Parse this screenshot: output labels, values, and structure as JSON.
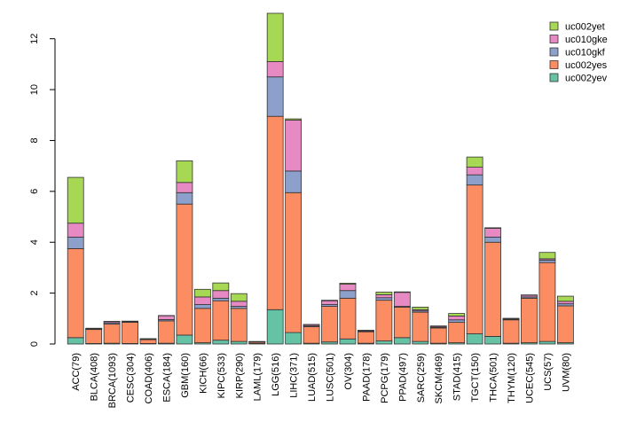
{
  "chart_data": {
    "type": "bar",
    "stacked": true,
    "ylim": [
      0,
      13
    ],
    "yticks": [
      0,
      2,
      4,
      6,
      8,
      10,
      12
    ],
    "categories": [
      "ACC(79)",
      "BLCA(408)",
      "BRCA(1093)",
      "CESC(304)",
      "COAD(406)",
      "ESCA(184)",
      "GBM(160)",
      "KICH(66)",
      "KIPC(533)",
      "KIRP(290)",
      "LAML(179)",
      "LGG(516)",
      "LIHC(371)",
      "LUAD(515)",
      "LUSC(501)",
      "OV(304)",
      "PAAD(178)",
      "PCPG(179)",
      "PPAD(497)",
      "SARC(259)",
      "SKCM(469)",
      "STAD(415)",
      "TGCT(150)",
      "THCA(501)",
      "THYM(120)",
      "UCEC(545)",
      "UCS(57)",
      "UVM(80)"
    ],
    "series": [
      {
        "name": "uc002yev",
        "color": "#66c2a5",
        "values": [
          0.25,
          0.02,
          0.03,
          0.02,
          0.02,
          0.03,
          0.35,
          0.05,
          0.15,
          0.1,
          0.02,
          1.35,
          0.45,
          0.03,
          0.08,
          0.2,
          0.03,
          0.12,
          0.25,
          0.1,
          0.03,
          0.05,
          0.4,
          0.3,
          0.03,
          0.05,
          0.1,
          0.05
        ]
      },
      {
        "name": "uc002yes",
        "color": "#fc8d62",
        "values": [
          3.5,
          0.55,
          0.75,
          0.83,
          0.15,
          0.88,
          5.15,
          1.35,
          1.55,
          1.3,
          0.05,
          7.6,
          5.5,
          0.65,
          1.4,
          1.6,
          0.45,
          1.6,
          1.2,
          1.15,
          0.6,
          0.8,
          5.85,
          3.7,
          0.92,
          1.75,
          3.1,
          1.45
        ]
      },
      {
        "name": "uc010gkf",
        "color": "#8da0cb",
        "values": [
          0.45,
          0.02,
          0.05,
          0.02,
          0.02,
          0.05,
          0.45,
          0.15,
          0.1,
          0.08,
          0.01,
          1.55,
          0.85,
          0.03,
          0.07,
          0.3,
          0.02,
          0.1,
          0.03,
          0.05,
          0.03,
          0.1,
          0.4,
          0.2,
          0.02,
          0.05,
          0.1,
          0.08
        ]
      },
      {
        "name": "uc010gke",
        "color": "#e78ac3",
        "values": [
          0.55,
          0.02,
          0.05,
          0.02,
          0.01,
          0.15,
          0.4,
          0.3,
          0.3,
          0.2,
          0.01,
          0.6,
          2.0,
          0.05,
          0.15,
          0.25,
          0.03,
          0.12,
          0.55,
          0.05,
          0.04,
          0.15,
          0.3,
          0.35,
          0.03,
          0.07,
          0.05,
          0.1
        ]
      },
      {
        "name": "uc002yet",
        "color": "#a6d854",
        "values": [
          1.8,
          0.01,
          0.01,
          0.01,
          0.01,
          0.01,
          0.85,
          0.3,
          0.3,
          0.3,
          0.01,
          1.9,
          0.05,
          0.01,
          0.02,
          0.04,
          0.01,
          0.1,
          0.02,
          0.1,
          0.01,
          0.1,
          0.4,
          0.02,
          0.01,
          0.01,
          0.25,
          0.2
        ]
      }
    ],
    "legend": {
      "placement": "top-right",
      "order": [
        "uc002yet",
        "uc010gke",
        "uc010gkf",
        "uc002yes",
        "uc002yev"
      ]
    }
  }
}
